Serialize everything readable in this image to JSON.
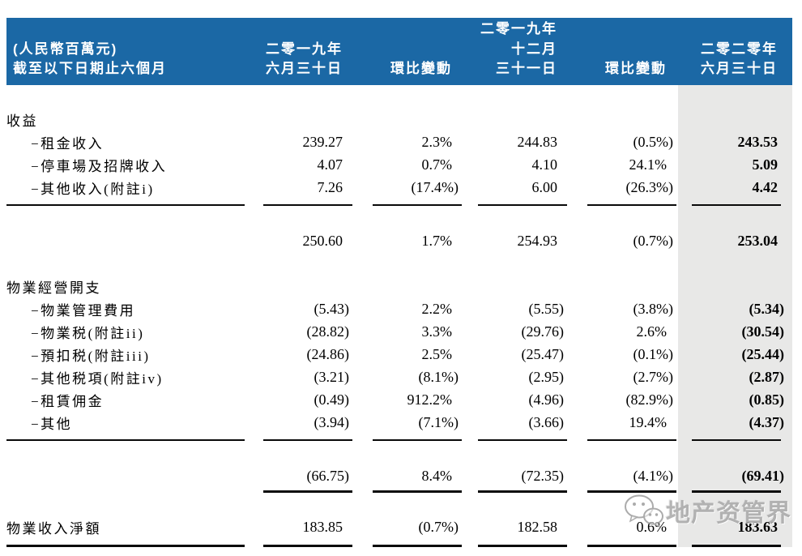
{
  "header": {
    "label_col": "(人民幣百萬元)\n截至以下日期止六個月",
    "col1": "二零一九年\n六月三十日",
    "col2": "環比變動",
    "col3": "二零一九年\n十二月\n三十一日",
    "col4": "環比變動",
    "col5": "二零二零年\n六月三十日"
  },
  "rows": [
    {
      "type": "section",
      "label": "收益",
      "c1": "",
      "c2": "",
      "c3": "",
      "c4": "",
      "c5": ""
    },
    {
      "type": "item",
      "label": "−租金收入",
      "c1": "239.27",
      "c2": "2.3%",
      "c3": "244.83",
      "c4": "(0.5%)",
      "c5": "243.53"
    },
    {
      "type": "item",
      "label": "−停車場及招牌收入",
      "c1": "4.07",
      "c2": "0.7%",
      "c3": "4.10",
      "c4": "24.1%",
      "c5": "5.09"
    },
    {
      "type": "item",
      "label": "−其他收入(附註i)",
      "c1": "7.26",
      "c2": "(17.4%)",
      "c3": "6.00",
      "c4": "(26.3%)",
      "c5": "4.42"
    },
    {
      "type": "rule-thin"
    },
    {
      "type": "subtotal",
      "label": "",
      "c1": "250.60",
      "c2": "1.7%",
      "c3": "254.93",
      "c4": "(0.7%)",
      "c5": "253.04"
    },
    {
      "type": "section",
      "label": "物業經營開支",
      "c1": "",
      "c2": "",
      "c3": "",
      "c4": "",
      "c5": ""
    },
    {
      "type": "item",
      "label": "−物業管理費用",
      "c1": "(5.43)",
      "c2": "2.2%",
      "c3": "(5.55)",
      "c4": "(3.8%)",
      "c5": "(5.34)"
    },
    {
      "type": "item",
      "label": "−物業税(附註ii)",
      "c1": "(28.82)",
      "c2": "3.3%",
      "c3": "(29.76)",
      "c4": "2.6%",
      "c5": "(30.54)"
    },
    {
      "type": "item",
      "label": "−預扣税(附註iii)",
      "c1": "(24.86)",
      "c2": "2.5%",
      "c3": "(25.47)",
      "c4": "(0.1%)",
      "c5": "(25.44)"
    },
    {
      "type": "item",
      "label": "−其他税項(附註iv)",
      "c1": "(3.21)",
      "c2": "(8.1%)",
      "c3": "(2.95)",
      "c4": "(2.7%)",
      "c5": "(2.87)"
    },
    {
      "type": "item",
      "label": "−租賃佣金",
      "c1": "(0.49)",
      "c2": "912.2%",
      "c3": "(4.96)",
      "c4": "(82.9%)",
      "c5": "(0.85)"
    },
    {
      "type": "item",
      "label": "−其他",
      "c1": "(3.94)",
      "c2": "(7.1%)",
      "c3": "(3.66)",
      "c4": "19.4%",
      "c5": "(4.37)"
    },
    {
      "type": "rule-thin"
    },
    {
      "type": "total",
      "label": "",
      "c1": "(66.75)",
      "c2": "8.4%",
      "c3": "(72.35)",
      "c4": "(4.1%)",
      "c5": "(69.41)"
    },
    {
      "type": "rule-thick-cols"
    },
    {
      "type": "net",
      "label": "物業收入淨額",
      "c1": "183.85",
      "c2": "(0.7%)",
      "c3": "182.58",
      "c4": "0.6%",
      "c5": "183.63"
    },
    {
      "type": "rule-thick-all"
    }
  ],
  "watermark": {
    "text": "地产资管界",
    "icon": "wechat-icon"
  },
  "colors": {
    "header_bg": "#1b68a5",
    "header_text": "#ffffff",
    "highlight_col_bg": "#e8e8e7",
    "rule": "#0a0a0a",
    "watermark_text": "#a8a8a8"
  }
}
